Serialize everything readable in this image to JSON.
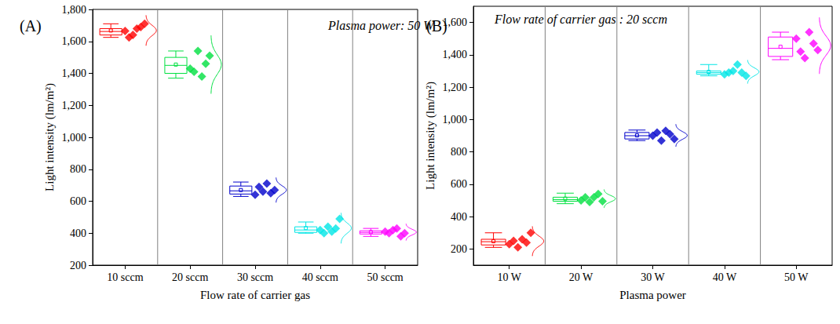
{
  "chart_data": [
    {
      "type": "boxplot",
      "title": "(A)",
      "annotations": [
        "Plasma power: 50 W"
      ],
      "x_label": "Flow rate of carrier gas",
      "y_label": "Light intensity (lm/m²)",
      "categories": [
        "10 sccm",
        "20 sccm",
        "30 sccm",
        "40 sccm",
        "50 sccm"
      ],
      "colors": [
        "#ff0000",
        "#00e040",
        "#0000cc",
        "#00e6e6",
        "#ff00ff"
      ],
      "boxes": [
        [
          1625,
          1640,
          1662,
          1680,
          1710
        ],
        [
          1370,
          1400,
          1450,
          1500,
          1540
        ],
        [
          630,
          645,
          665,
          695,
          720
        ],
        [
          400,
          405,
          420,
          440,
          470
        ],
        [
          380,
          395,
          405,
          415,
          430
        ]
      ],
      "means": [
        1668,
        1455,
        670,
        432,
        407
      ],
      "points": [
        [
          1665,
          1625,
          1640,
          1680,
          1690,
          1710
        ],
        [
          1430,
          1410,
          1540,
          1380,
          1460,
          1510
        ],
        [
          640,
          690,
          660,
          710,
          650,
          670
        ],
        [
          420,
          400,
          440,
          410,
          430,
          490
        ],
        [
          410,
          400,
          420,
          430,
          380,
          400
        ]
      ],
      "ylim": [
        200,
        1800
      ],
      "yticks": [
        200,
        400,
        600,
        800,
        1000,
        1200,
        1400,
        1600,
        1800
      ],
      "grid": false
    },
    {
      "type": "boxplot",
      "title": "(B)",
      "annotations": [
        "Flow rate of carrier gas : 20 sccm"
      ],
      "x_label": "Plasma power",
      "y_label": "Light intensity (lm/m²)",
      "categories": [
        "10 W",
        "20 W",
        "30 W",
        "40 W",
        "50 W"
      ],
      "colors": [
        "#ff0000",
        "#00e040",
        "#0000cc",
        "#00e6e6",
        "#ff00ff"
      ],
      "boxes": [
        [
          210,
          225,
          245,
          260,
          300
        ],
        [
          480,
          495,
          505,
          520,
          545
        ],
        [
          870,
          880,
          900,
          920,
          935
        ],
        [
          1270,
          1280,
          1290,
          1300,
          1340
        ],
        [
          1370,
          1390,
          1440,
          1510,
          1540
        ]
      ],
      "means": [
        248,
        511,
        902,
        1295,
        1450
      ],
      "points": [
        [
          230,
          250,
          210,
          260,
          240,
          300
        ],
        [
          500,
          520,
          490,
          520,
          540,
          495
        ],
        [
          900,
          920,
          870,
          930,
          910,
          880
        ],
        [
          1280,
          1290,
          1300,
          1340,
          1290,
          1270
        ],
        [
          1500,
          1420,
          1380,
          1540,
          1470,
          1430
        ]
      ],
      "ylim": [
        100,
        1700
      ],
      "yticks": [
        200,
        400,
        600,
        800,
        1000,
        1200,
        1400,
        1600
      ],
      "grid": false
    }
  ]
}
